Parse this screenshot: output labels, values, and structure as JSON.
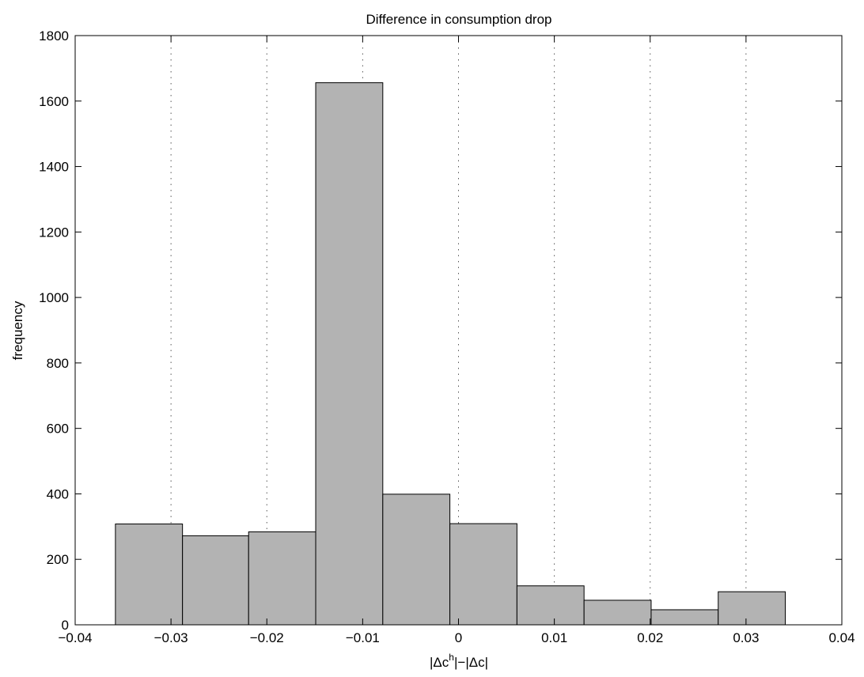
{
  "chart_data": {
    "type": "bar",
    "title": "Difference in consumption drop",
    "xlabel": {
      "prefix": "|Δc",
      "sup": "h",
      "suffix": "|−|Δc|"
    },
    "ylabel": "frequency",
    "xlim": [
      -0.04,
      0.04
    ],
    "ylim": [
      0,
      1800
    ],
    "xticks": [
      {
        "value": -0.04,
        "label": "−0.04"
      },
      {
        "value": -0.03,
        "label": "−0.03"
      },
      {
        "value": -0.02,
        "label": "−0.02"
      },
      {
        "value": -0.01,
        "label": "−0.01"
      },
      {
        "value": 0,
        "label": "0"
      },
      {
        "value": 0.01,
        "label": "0.01"
      },
      {
        "value": 0.02,
        "label": "0.02"
      },
      {
        "value": 0.03,
        "label": "0.03"
      },
      {
        "value": 0.04,
        "label": "0.04"
      }
    ],
    "yticks": [
      {
        "value": 0,
        "label": "0"
      },
      {
        "value": 200,
        "label": "200"
      },
      {
        "value": 400,
        "label": "400"
      },
      {
        "value": 600,
        "label": "600"
      },
      {
        "value": 800,
        "label": "800"
      },
      {
        "value": 1000,
        "label": "1000"
      },
      {
        "value": 1200,
        "label": "1200"
      },
      {
        "value": 1400,
        "label": "1400"
      },
      {
        "value": 1600,
        "label": "1600"
      },
      {
        "value": 1800,
        "label": "1800"
      }
    ],
    "grid": "x-dotted",
    "bar_color": "#b3b3b3",
    "bin_edges": [
      -0.0358,
      -0.0288,
      -0.0219,
      -0.0149,
      -0.0079,
      -0.0009,
      0.0061,
      0.0131,
      0.0201,
      0.0271,
      0.0341
    ],
    "values": [
      308,
      272,
      284,
      1656,
      399,
      309,
      119,
      75,
      46,
      101
    ]
  }
}
